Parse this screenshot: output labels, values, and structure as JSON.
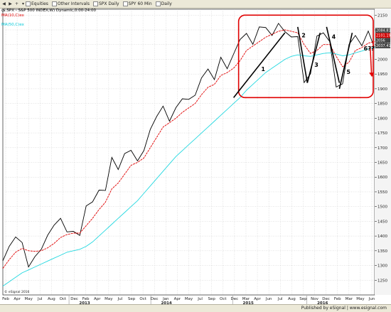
{
  "toolbar": {
    "items": [
      {
        "label": "Equities",
        "icon": "list-icon"
      },
      {
        "label": "Other Intervals",
        "icon": "clock-icon"
      },
      {
        "label": "SPX Daily",
        "icon": "chart-icon"
      },
      {
        "label": "SPY 60 Min",
        "icon": "chart-icon"
      },
      {
        "label": "Daily",
        "icon": "chart-icon"
      }
    ]
  },
  "symbol_line": "($.SPX - S&P 500 INDEX,W) Dynamic,0:00-24:00",
  "footer_text": "Published by eSignal | www.esignal.com",
  "chart_data": {
    "type": "line",
    "indicator_labels": [
      "MA(10,C)ex",
      "MA(50,C)ex"
    ],
    "colors": {
      "price": "#000000",
      "ma10": "#e00000",
      "ma50": "#22d8e0",
      "highlight": "#e00000",
      "tag_red": "#d00000",
      "tag_gray": "#444444"
    },
    "ylim": [
      1200,
      2170
    ],
    "yticks": [
      1250,
      1300,
      1350,
      1400,
      1450,
      1500,
      1550,
      1600,
      1650,
      1700,
      1750,
      1800,
      1850,
      1900,
      1950,
      2000,
      2050,
      2100,
      2150
    ],
    "price_tags": [
      {
        "label": "2084.81",
        "color": "#444444",
        "value": 2098
      },
      {
        "label": "2101.19",
        "color": "#d00000",
        "value": 2081
      },
      {
        "label": "2056",
        "color": "#444444",
        "value": 2064
      },
      {
        "label": "2037.41",
        "color": "#444444",
        "value": 2046
      }
    ],
    "x_month_labels": [
      "Feb",
      "Apr",
      "May",
      "Jul",
      "Aug",
      "Oct",
      "Dec",
      "Feb",
      "Apr",
      "May",
      "Jul",
      "Sep",
      "Oct",
      "Dec",
      "Jan",
      "Apr",
      "May",
      "Jul",
      "Sep",
      "Oct",
      "Dec",
      "Mar",
      "Apr",
      "Jun",
      "Jul",
      "Aug",
      "Sep",
      "Nov",
      "Dec",
      "Feb",
      "Mar",
      "May",
      "Jun"
    ],
    "x_year_labels": [
      "2013",
      "2014",
      "2015",
      "2016"
    ],
    "watermark": "© eSignal 2016",
    "annotations": [
      "1",
      "2",
      "3",
      "4",
      "5",
      "6??"
    ],
    "x": [
      "2012-01-27",
      "2012-02-24",
      "2012-03-23",
      "2012-04-20",
      "2012-05-18",
      "2012-06-15",
      "2012-07-13",
      "2012-08-10",
      "2012-09-07",
      "2012-10-05",
      "2012-11-02",
      "2012-11-30",
      "2012-12-28",
      "2013-01-25",
      "2013-02-22",
      "2013-03-22",
      "2013-04-19",
      "2013-05-17",
      "2013-06-14",
      "2013-07-12",
      "2013-08-09",
      "2013-09-06",
      "2013-10-04",
      "2013-11-01",
      "2013-11-29",
      "2013-12-27",
      "2014-01-24",
      "2014-02-21",
      "2014-03-21",
      "2014-04-18",
      "2014-05-16",
      "2014-06-13",
      "2014-07-11",
      "2014-08-08",
      "2014-09-05",
      "2014-10-03",
      "2014-10-31",
      "2014-11-28",
      "2014-12-26",
      "2015-01-23",
      "2015-02-20",
      "2015-03-20",
      "2015-04-17",
      "2015-05-15",
      "2015-06-12",
      "2015-07-10",
      "2015-08-07",
      "2015-09-04",
      "2015-10-02",
      "2015-10-30",
      "2015-11-27",
      "2015-12-25",
      "2016-01-22",
      "2016-02-19",
      "2016-03-18",
      "2016-04-15",
      "2016-05-13",
      "2016-06-10",
      "2016-06-24"
    ],
    "series": [
      {
        "name": "",
        "role": "price",
        "values": [
          1316,
          1365,
          1397,
          1378,
          1295,
          1330,
          1355,
          1403,
          1437,
          1460,
          1414,
          1416,
          1402,
          1502,
          1516,
          1556,
          1555,
          1667,
          1626,
          1680,
          1691,
          1655,
          1690,
          1762,
          1806,
          1841,
          1790,
          1836,
          1866,
          1864,
          1878,
          1937,
          1967,
          1931,
          2007,
          1968,
          2018,
          2067,
          2088,
          2051,
          2110,
          2108,
          2081,
          2122,
          2094,
          2076,
          2077,
          1921,
          1951,
          2079,
          2090,
          2060,
          1906,
          1917,
          2050,
          2081,
          2046,
          2096,
          2037
        ]
      },
      {
        "name": "",
        "role": "ma10",
        "values": [
          1290,
          1320,
          1345,
          1358,
          1350,
          1348,
          1350,
          1360,
          1375,
          1395,
          1405,
          1410,
          1410,
          1435,
          1460,
          1490,
          1515,
          1560,
          1580,
          1610,
          1640,
          1650,
          1665,
          1700,
          1735,
          1770,
          1785,
          1800,
          1820,
          1835,
          1850,
          1880,
          1905,
          1915,
          1945,
          1955,
          1970,
          1995,
          2030,
          2045,
          2060,
          2075,
          2085,
          2095,
          2100,
          2095,
          2090,
          2050,
          2020,
          2030,
          2050,
          2050,
          2010,
          1975,
          1990,
          2030,
          2040,
          2055,
          2060
        ]
      },
      {
        "name": "",
        "role": "ma50",
        "values": [
          1230,
          1245,
          1260,
          1275,
          1285,
          1295,
          1305,
          1315,
          1325,
          1335,
          1345,
          1350,
          1355,
          1365,
          1380,
          1400,
          1420,
          1440,
          1460,
          1480,
          1500,
          1520,
          1545,
          1570,
          1595,
          1620,
          1645,
          1670,
          1690,
          1710,
          1730,
          1750,
          1770,
          1790,
          1810,
          1830,
          1850,
          1870,
          1895,
          1915,
          1935,
          1955,
          1970,
          1985,
          2000,
          2010,
          2015,
          2012,
          2010,
          2015,
          2020,
          2022,
          2018,
          2012,
          2015,
          2022,
          2028,
          2035,
          2040
        ]
      }
    ]
  }
}
